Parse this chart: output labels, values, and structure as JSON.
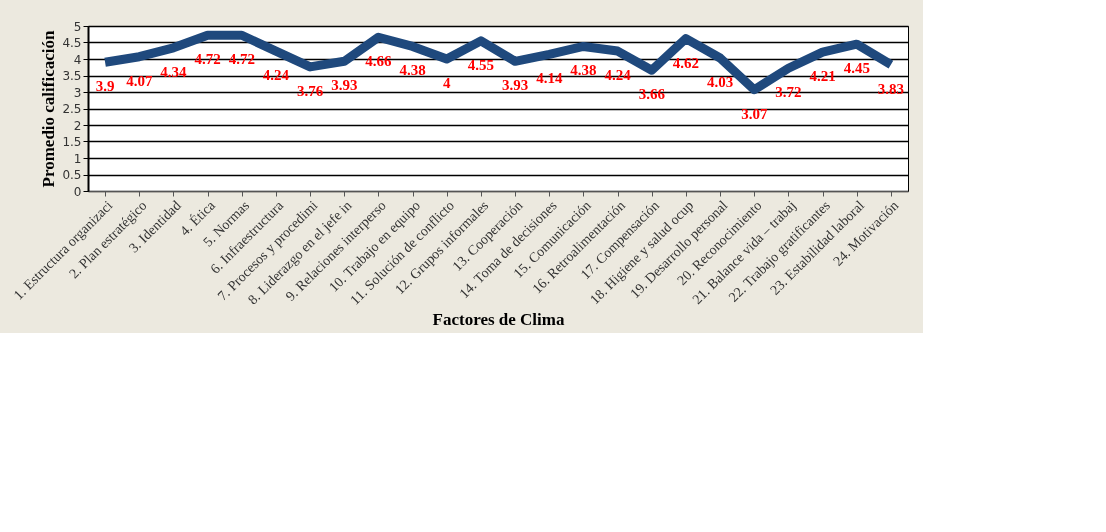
{
  "chart_data": {
    "type": "line",
    "xlabel": "Factores de Clima",
    "ylabel": "Promedio calificación",
    "categories": [
      "1. Estructura organizaci",
      "2. Plan estratégico",
      "3. Identidad",
      "4. Ética",
      "5. Normas",
      "6. Infraestructura",
      "7. Procesos y procedimi",
      "8. Liderazgo en el jefe in",
      "9. Relaciones interperso",
      "10. Trabajo en equipo",
      "11. Solución de conflicto",
      "12. Grupos informales",
      "13. Cooperación",
      "14. Toma de decisiones",
      "15. Comunicación",
      "16. Retroalimentación",
      "17. Compensación",
      "18. Higiene y salud ocup",
      "19. Desarrollo personal",
      "20. Reconocimiento",
      "21. Balance vida – trabaj",
      "22. Trabajo gratificantes",
      "23. Estabilidad laboral",
      "24. Motivación"
    ],
    "series": [
      {
        "color": "#1f497d",
        "values": [
          3.9,
          4.07,
          4.34,
          4.72,
          4.72,
          4.24,
          3.76,
          3.93,
          4.66,
          4.38,
          4,
          4.55,
          3.93,
          4.14,
          4.38,
          4.24,
          3.66,
          4.62,
          4.03,
          3.07,
          3.72,
          4.21,
          4.45,
          3.83
        ]
      }
    ],
    "ylim": [
      0,
      5
    ],
    "yticks": [
      0,
      0.5,
      1,
      1.5,
      2,
      2.5,
      3,
      3.5,
      4,
      4.5,
      5
    ],
    "grid": "y",
    "data_labels": true,
    "marker": "none",
    "line_style": "solid",
    "legend": false
  }
}
